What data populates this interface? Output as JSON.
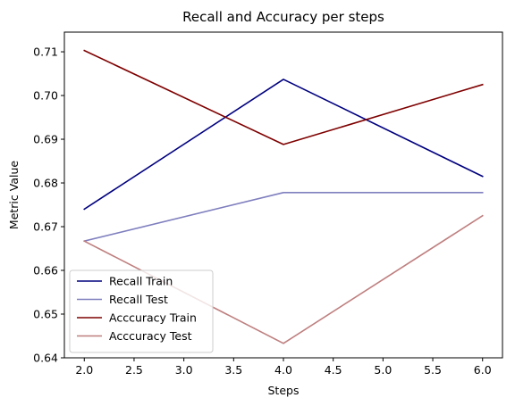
{
  "chart_data": {
    "type": "line",
    "title": "Recall and Accuracy per steps",
    "xlabel": "Steps",
    "ylabel": "Metric Value",
    "x": [
      2,
      4,
      6
    ],
    "xlim": [
      1.8,
      6.2
    ],
    "ylim": [
      0.64,
      0.7145
    ],
    "xticks": [
      2.0,
      2.5,
      3.0,
      3.5,
      4.0,
      4.5,
      5.0,
      5.5,
      6.0
    ],
    "xtick_labels": [
      "2.0",
      "2.5",
      "3.0",
      "3.5",
      "4.0",
      "4.5",
      "5.0",
      "5.5",
      "6.0"
    ],
    "yticks": [
      0.64,
      0.65,
      0.66,
      0.67,
      0.68,
      0.69,
      0.7,
      0.71
    ],
    "ytick_labels": [
      "0.64",
      "0.65",
      "0.66",
      "0.67",
      "0.68",
      "0.69",
      "0.70",
      "0.71"
    ],
    "grid": false,
    "legend_position": "lower-left",
    "series": [
      {
        "name": "Recall Train",
        "color": "#00007f",
        "values": [
          0.674,
          0.7037,
          0.6815
        ]
      },
      {
        "name": "Recall Test",
        "color": "#7f7fbf",
        "values": [
          0.6667,
          0.6778,
          0.6778
        ]
      },
      {
        "name": "Acccuracy Train",
        "color": "#7f0000",
        "values": [
          0.7103,
          0.6888,
          0.7025
        ]
      },
      {
        "name": "Acccuracy Test",
        "color": "#bf7f7f",
        "values": [
          0.6667,
          0.6433,
          0.6725
        ]
      }
    ]
  }
}
